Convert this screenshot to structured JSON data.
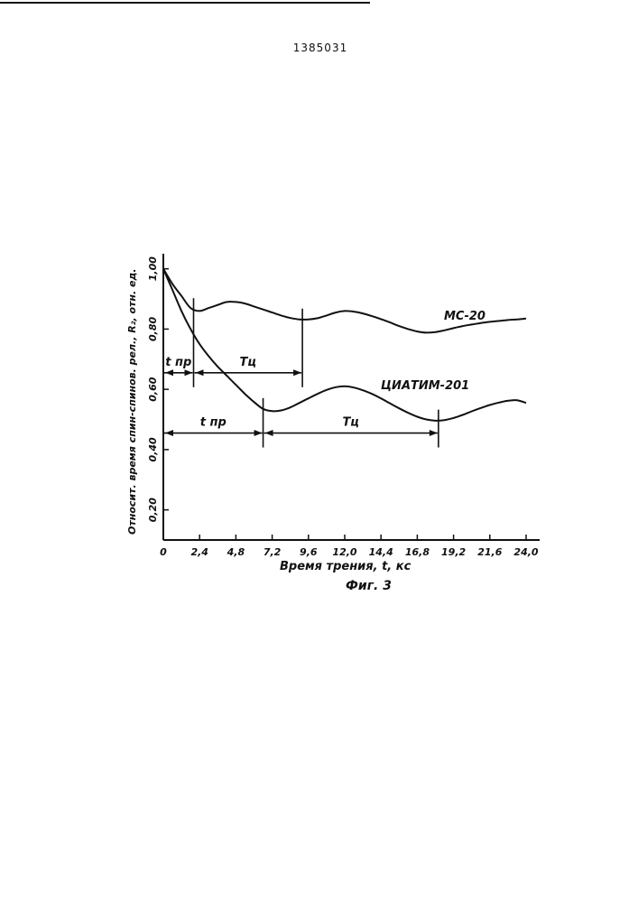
{
  "document": {
    "patent_number": "1385031"
  },
  "chart_data": {
    "type": "line",
    "xlabel": "Время трения, t, кс",
    "ylabel": "Относит. время спин-спинов. рел., R₂, отн. ед.",
    "caption": "Фиг. 3",
    "xlim": [
      0,
      24.0
    ],
    "ylim": [
      0.1,
      1.05
    ],
    "x_ticks": [
      0,
      2.4,
      4.8,
      7.2,
      9.6,
      12.0,
      14.4,
      16.8,
      19.2,
      21.6,
      24.0
    ],
    "x_tick_labels": [
      "0",
      "2,4",
      "4,8",
      "7,2",
      "9,6",
      "12,0",
      "14,4",
      "16,8",
      "19,2",
      "21,6",
      "24,0"
    ],
    "y_ticks": [
      0.2,
      0.4,
      0.6,
      0.8,
      1.0
    ],
    "y_tick_labels": [
      "0,20",
      "0,40",
      "0,60",
      "0,80",
      "1,00"
    ],
    "grid": false,
    "series": [
      {
        "name": "МС-20",
        "x": [
          0,
          0.6,
          1.2,
          1.8,
          2.4,
          3.0,
          3.6,
          4.2,
          4.8,
          5.4,
          6.0,
          6.6,
          7.2,
          7.8,
          8.4,
          9.0,
          9.6,
          10.2,
          10.8,
          11.4,
          12.0,
          12.6,
          13.2,
          13.8,
          14.4,
          15.0,
          15.6,
          16.2,
          16.8,
          17.4,
          18.0,
          18.6,
          19.2,
          19.8,
          20.4,
          21.0,
          21.6,
          22.2,
          22.8,
          23.4,
          24.0
        ],
        "values": [
          1.0,
          0.95,
          0.91,
          0.87,
          0.86,
          0.87,
          0.88,
          0.89,
          0.89,
          0.885,
          0.875,
          0.865,
          0.855,
          0.845,
          0.837,
          0.832,
          0.832,
          0.836,
          0.845,
          0.855,
          0.86,
          0.858,
          0.852,
          0.843,
          0.833,
          0.822,
          0.81,
          0.8,
          0.792,
          0.788,
          0.79,
          0.796,
          0.803,
          0.81,
          0.815,
          0.82,
          0.824,
          0.827,
          0.83,
          0.832,
          0.835
        ]
      },
      {
        "name": "ЦИАТИМ-201",
        "x": [
          0,
          0.6,
          1.2,
          1.8,
          2.4,
          3.0,
          3.6,
          4.2,
          4.8,
          5.4,
          6.0,
          6.6,
          7.2,
          7.8,
          8.4,
          9.0,
          9.6,
          10.2,
          10.8,
          11.4,
          12.0,
          12.6,
          13.2,
          13.8,
          14.4,
          15.0,
          15.6,
          16.2,
          16.8,
          17.4,
          18.0,
          18.6,
          19.2,
          19.8,
          20.4,
          21.0,
          21.6,
          22.2,
          22.8,
          23.4,
          24.0
        ],
        "values": [
          1.0,
          0.93,
          0.86,
          0.8,
          0.75,
          0.71,
          0.675,
          0.645,
          0.615,
          0.585,
          0.558,
          0.535,
          0.528,
          0.53,
          0.54,
          0.555,
          0.57,
          0.585,
          0.598,
          0.607,
          0.61,
          0.606,
          0.597,
          0.585,
          0.57,
          0.553,
          0.537,
          0.522,
          0.509,
          0.5,
          0.496,
          0.498,
          0.505,
          0.515,
          0.527,
          0.538,
          0.548,
          0.556,
          0.562,
          0.564,
          0.555
        ]
      }
    ],
    "annotations": [
      {
        "label": "t пр",
        "series": "МС-20",
        "from": 0,
        "to": 2.0,
        "y": 0.655
      },
      {
        "label": "Tц",
        "series": "МС-20",
        "from": 2.0,
        "to": 9.2,
        "y": 0.655
      },
      {
        "label": "t пр",
        "series": "ЦИАТИМ-201",
        "from": 0,
        "to": 6.6,
        "y": 0.455
      },
      {
        "label": "Tц",
        "series": "ЦИАТИМ-201",
        "from": 6.6,
        "to": 18.2,
        "y": 0.455
      }
    ]
  }
}
